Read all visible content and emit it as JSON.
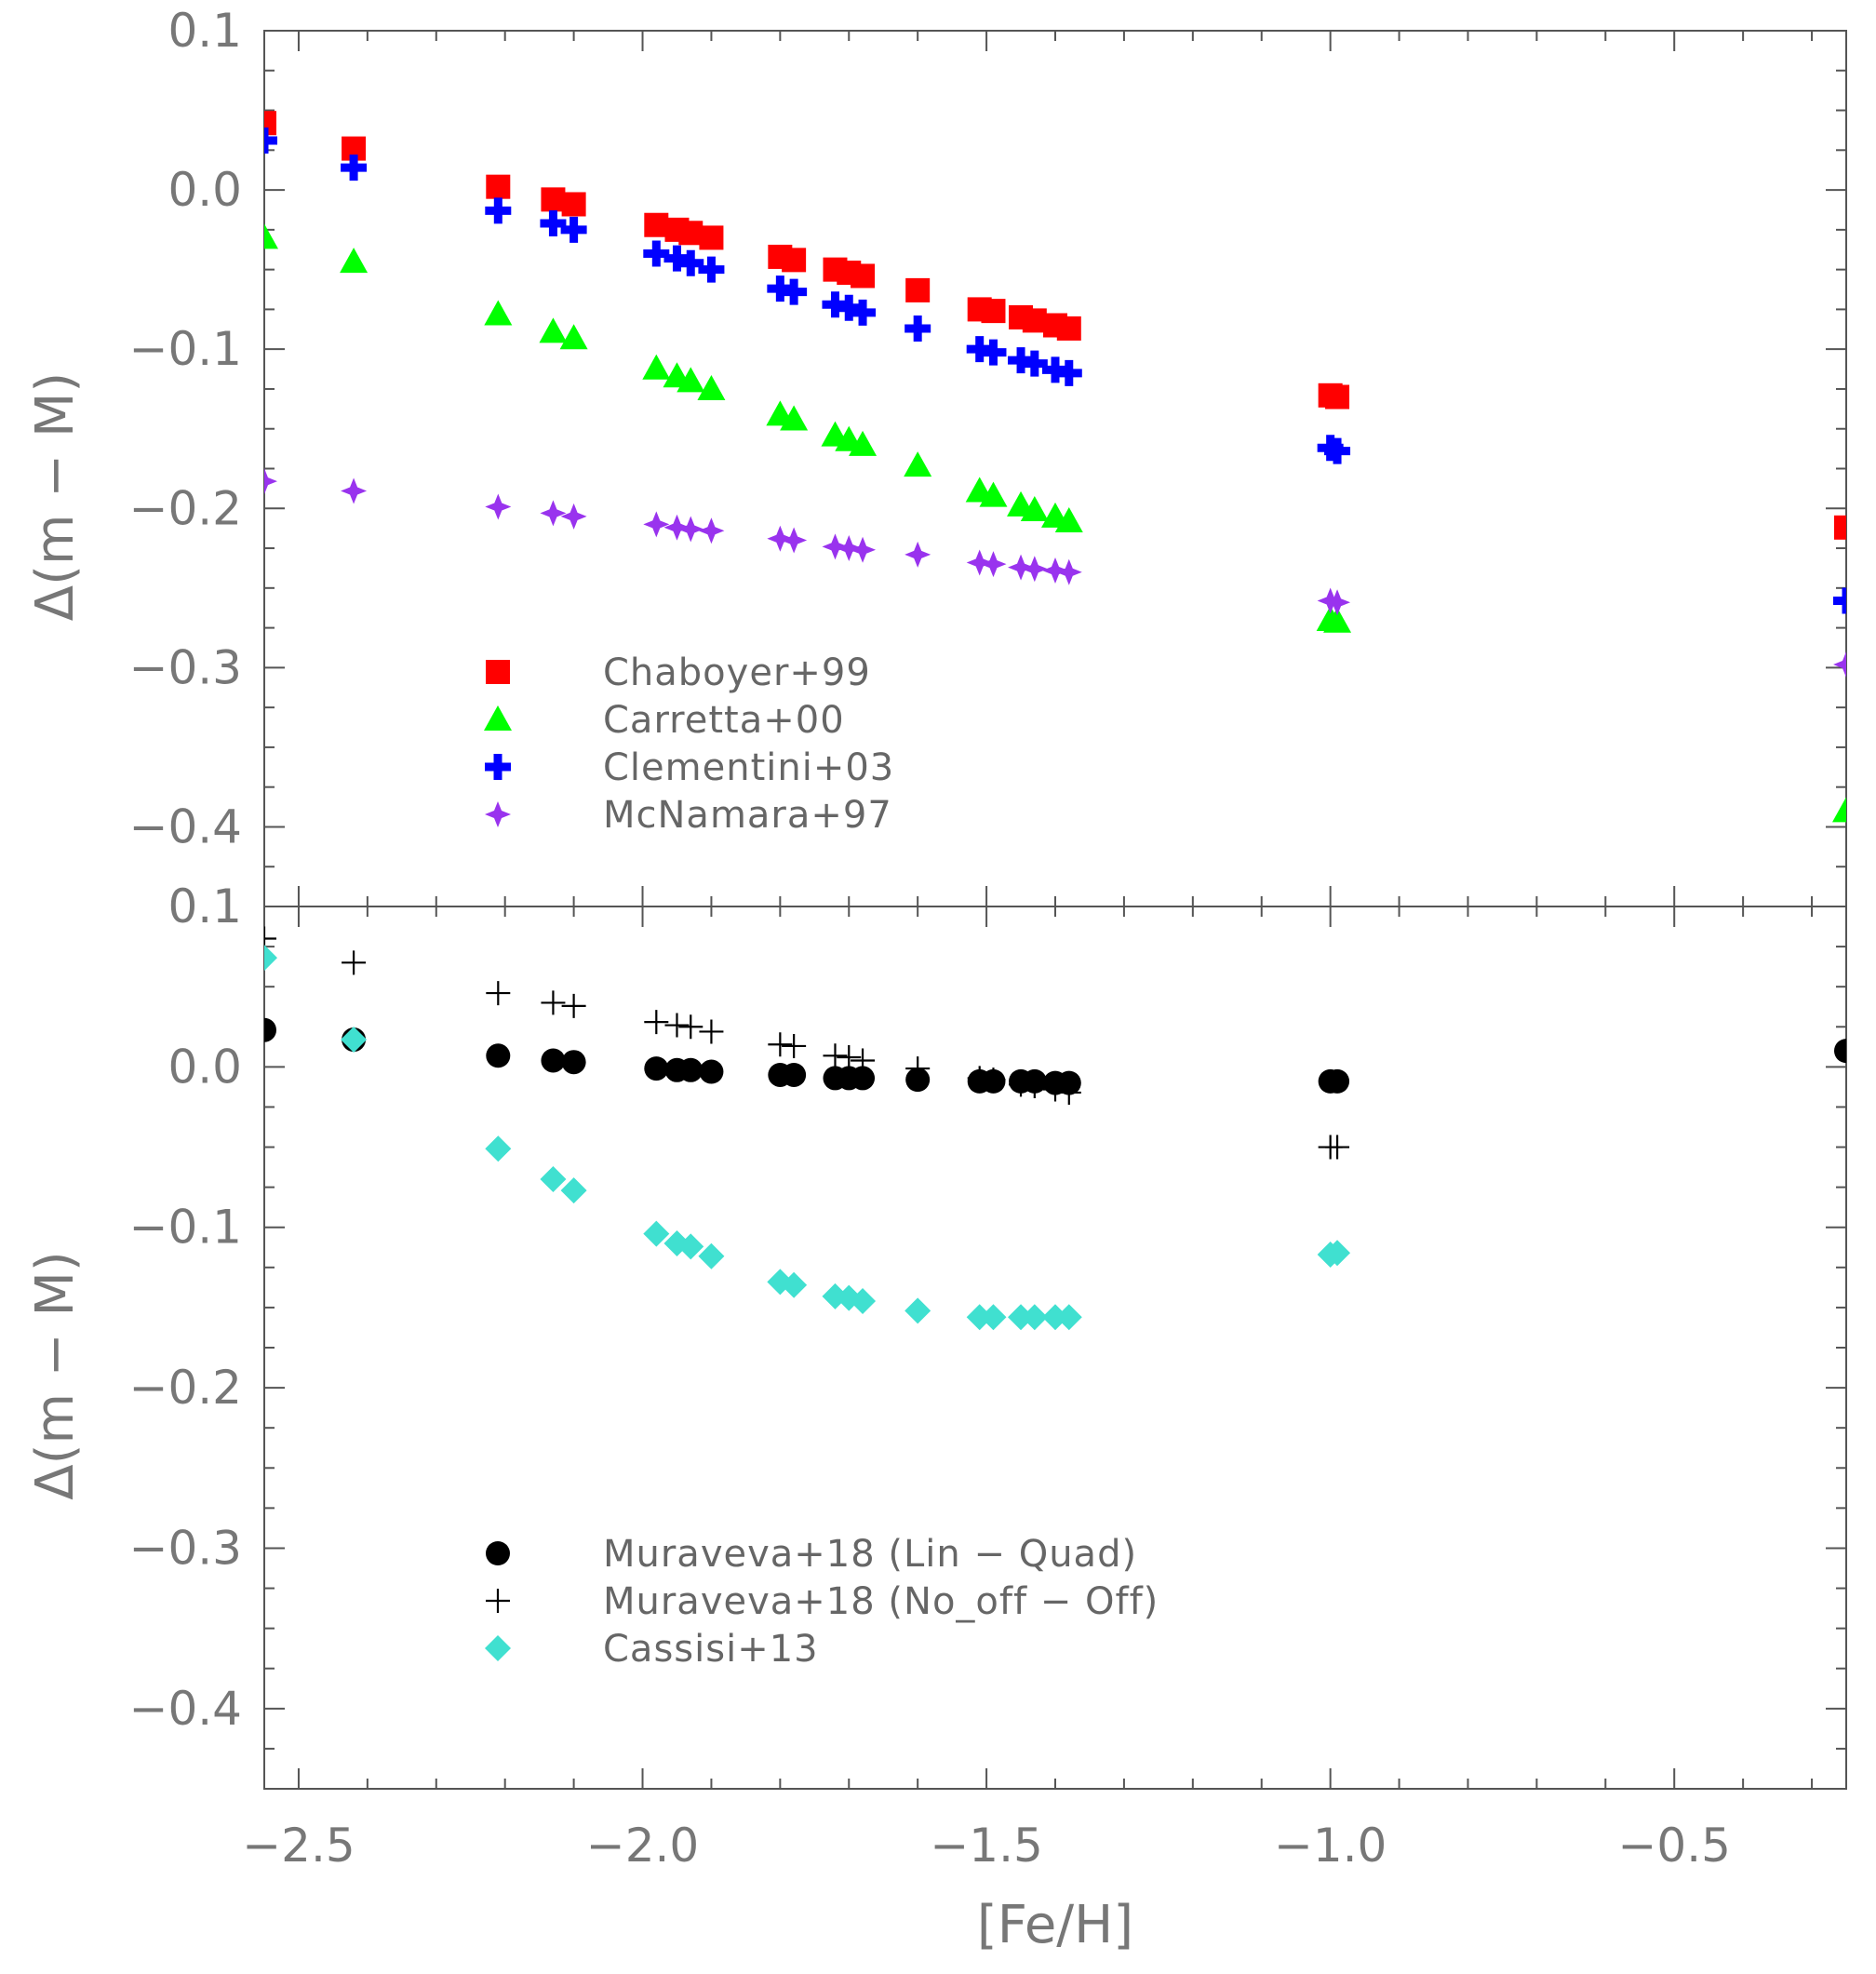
{
  "chart_data": [
    {
      "type": "scatter",
      "panel": "top",
      "xlabel": "",
      "ylabel": "Δ(m − M)",
      "xlim": [
        -2.55,
        -0.25
      ],
      "ylim": [
        -0.45,
        0.1
      ],
      "x_ticks": [
        "−2.5",
        "−2.0",
        "−1.5",
        "−1.0",
        "−0.5"
      ],
      "y_ticks": [
        {
          "value": 0.1,
          "label": "0.1"
        },
        {
          "value": 0.0,
          "label": "0.0"
        },
        {
          "value": -0.1,
          "label": "−0.1"
        },
        {
          "value": -0.2,
          "label": "−0.2"
        },
        {
          "value": -0.3,
          "label": "−0.3"
        },
        {
          "value": -0.4,
          "label": "−0.4"
        }
      ],
      "legend_position": "lower-left",
      "series": [
        {
          "name": "Chaboyer+99",
          "marker": "square",
          "color": "#ff0000",
          "x": [
            -2.55,
            -2.42,
            -2.21,
            -2.13,
            -2.1,
            -1.98,
            -1.95,
            -1.93,
            -1.9,
            -1.8,
            -1.78,
            -1.72,
            -1.7,
            -1.68,
            -1.6,
            -1.51,
            -1.49,
            -1.45,
            -1.43,
            -1.4,
            -1.38,
            -1.0,
            -0.99,
            -0.25
          ],
          "y": [
            0.042,
            0.026,
            0.002,
            -0.006,
            -0.009,
            -0.022,
            -0.025,
            -0.027,
            -0.03,
            -0.042,
            -0.044,
            -0.05,
            -0.052,
            -0.054,
            -0.063,
            -0.075,
            -0.076,
            -0.08,
            -0.082,
            -0.085,
            -0.087,
            -0.129,
            -0.13,
            -0.212
          ]
        },
        {
          "name": "Carretta+00",
          "marker": "triangle",
          "color": "#00ff00",
          "x": [
            -2.55,
            -2.42,
            -2.21,
            -2.13,
            -2.1,
            -1.98,
            -1.95,
            -1.93,
            -1.9,
            -1.8,
            -1.78,
            -1.72,
            -1.7,
            -1.68,
            -1.6,
            -1.51,
            -1.49,
            -1.45,
            -1.43,
            -1.4,
            -1.38,
            -1.0,
            -0.99,
            -0.25
          ],
          "y": [
            -0.03,
            -0.045,
            -0.078,
            -0.089,
            -0.093,
            -0.112,
            -0.117,
            -0.12,
            -0.125,
            -0.141,
            -0.144,
            -0.154,
            -0.157,
            -0.16,
            -0.173,
            -0.189,
            -0.192,
            -0.198,
            -0.201,
            -0.205,
            -0.208,
            -0.27,
            -0.271,
            -0.39
          ]
        },
        {
          "name": "Clementini+03",
          "marker": "cross",
          "color": "#0000ff",
          "x": [
            -2.55,
            -2.42,
            -2.21,
            -2.13,
            -2.1,
            -1.98,
            -1.95,
            -1.93,
            -1.9,
            -1.8,
            -1.78,
            -1.72,
            -1.7,
            -1.68,
            -1.6,
            -1.51,
            -1.49,
            -1.45,
            -1.43,
            -1.4,
            -1.38,
            -1.0,
            -0.99,
            -0.25
          ],
          "y": [
            0.031,
            0.014,
            -0.013,
            -0.021,
            -0.025,
            -0.04,
            -0.043,
            -0.046,
            -0.05,
            -0.062,
            -0.064,
            -0.072,
            -0.074,
            -0.077,
            -0.087,
            -0.1,
            -0.102,
            -0.107,
            -0.109,
            -0.113,
            -0.115,
            -0.162,
            -0.164,
            -0.258
          ]
        },
        {
          "name": "McNamara+97",
          "marker": "star",
          "color": "#9933ee",
          "x": [
            -2.55,
            -2.42,
            -2.21,
            -2.13,
            -2.1,
            -1.98,
            -1.95,
            -1.93,
            -1.9,
            -1.8,
            -1.78,
            -1.72,
            -1.7,
            -1.68,
            -1.6,
            -1.51,
            -1.49,
            -1.45,
            -1.43,
            -1.4,
            -1.38,
            -1.0,
            -0.99,
            -0.25
          ],
          "y": [
            -0.183,
            -0.189,
            -0.199,
            -0.203,
            -0.205,
            -0.21,
            -0.212,
            -0.213,
            -0.214,
            -0.219,
            -0.22,
            -0.224,
            -0.225,
            -0.226,
            -0.229,
            -0.234,
            -0.235,
            -0.237,
            -0.238,
            -0.239,
            -0.24,
            -0.258,
            -0.259,
            -0.298
          ]
        }
      ]
    },
    {
      "type": "scatter",
      "panel": "bottom",
      "xlabel": "[Fe/H]",
      "ylabel": "Δ(m − M)",
      "xlim": [
        -2.55,
        -0.25
      ],
      "ylim": [
        -0.45,
        0.1
      ],
      "x_ticks": [
        "−2.5",
        "−2.0",
        "−1.5",
        "−1.0",
        "−0.5"
      ],
      "y_ticks": [
        {
          "value": 0.1,
          "label": "0.1"
        },
        {
          "value": 0.0,
          "label": "0.0"
        },
        {
          "value": -0.1,
          "label": "−0.1"
        },
        {
          "value": -0.2,
          "label": "−0.2"
        },
        {
          "value": -0.3,
          "label": "−0.3"
        },
        {
          "value": -0.4,
          "label": "−0.4"
        }
      ],
      "legend_position": "lower-left",
      "series": [
        {
          "name": "Muraveva+18 (Lin − Quad)",
          "marker": "circle",
          "color": "#000000",
          "x": [
            -2.55,
            -2.42,
            -2.21,
            -2.13,
            -2.1,
            -1.98,
            -1.95,
            -1.93,
            -1.9,
            -1.8,
            -1.78,
            -1.72,
            -1.7,
            -1.68,
            -1.6,
            -1.51,
            -1.49,
            -1.45,
            -1.43,
            -1.4,
            -1.38,
            -1.0,
            -0.99,
            -0.25
          ],
          "y": [
            0.023,
            0.017,
            0.007,
            0.004,
            0.003,
            -0.001,
            -0.002,
            -0.002,
            -0.003,
            -0.005,
            -0.005,
            -0.007,
            -0.007,
            -0.007,
            -0.008,
            -0.009,
            -0.009,
            -0.009,
            -0.009,
            -0.01,
            -0.01,
            -0.009,
            -0.009,
            0.01
          ]
        },
        {
          "name": "Muraveva+18 (No_off − Off)",
          "marker": "plus",
          "color": "#000000",
          "x": [
            -2.55,
            -2.42,
            -2.21,
            -2.13,
            -2.1,
            -1.98,
            -1.95,
            -1.93,
            -1.9,
            -1.8,
            -1.78,
            -1.72,
            -1.7,
            -1.68,
            -1.6,
            -1.51,
            -1.49,
            -1.45,
            -1.43,
            -1.4,
            -1.38,
            -1.0,
            -0.99
          ],
          "y": [
            0.08,
            0.065,
            0.046,
            0.04,
            0.038,
            0.028,
            0.026,
            0.025,
            0.022,
            0.014,
            0.013,
            0.007,
            0.006,
            0.004,
            -0.001,
            -0.007,
            -0.008,
            -0.011,
            -0.012,
            -0.014,
            -0.016,
            -0.05,
            -0.05
          ]
        },
        {
          "name": "Cassisi+13",
          "marker": "diamond",
          "color": "#40e0d0",
          "x": [
            -2.55,
            -2.42,
            -2.21,
            -2.13,
            -2.1,
            -1.98,
            -1.95,
            -1.93,
            -1.9,
            -1.8,
            -1.78,
            -1.72,
            -1.7,
            -1.68,
            -1.6,
            -1.51,
            -1.49,
            -1.45,
            -1.43,
            -1.4,
            -1.38,
            -1.0,
            -0.99
          ],
          "y": [
            0.068,
            0.017,
            -0.051,
            -0.07,
            -0.077,
            -0.104,
            -0.11,
            -0.112,
            -0.118,
            -0.134,
            -0.136,
            -0.143,
            -0.144,
            -0.146,
            -0.152,
            -0.156,
            -0.156,
            -0.156,
            -0.156,
            -0.156,
            -0.156,
            -0.117,
            -0.116
          ]
        }
      ]
    }
  ]
}
